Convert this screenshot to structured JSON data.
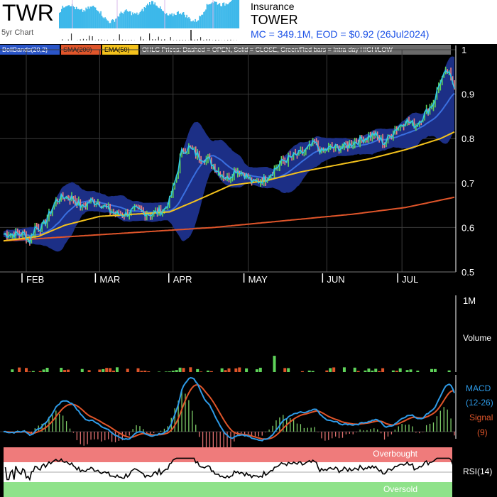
{
  "header": {
    "ticker": "TWR",
    "five_yr_label": "5yr Chart",
    "sector": "Insurance",
    "company": "TOWER",
    "market_info": "MC = 349.1M, EOD = $0.92 (26Jul2024)"
  },
  "legend": {
    "boll": "BollBands(20,2)",
    "sma": "SMA(200)",
    "ema": "EMA(50)",
    "note": "OHLC Prices: Dashed = OPEN, Solid = CLOSE, Green/Red bars = Intra-day HIGH/LOW"
  },
  "colors": {
    "boll_fill": "#1c2f86",
    "boll_mid": "#3a6fe0",
    "sma": "#e0552a",
    "ema": "#f4c21c",
    "price": "#2ec7e8",
    "up": "#5fd35a",
    "down": "#ef8080",
    "macd": "#2e9be8",
    "signal": "#e0552a",
    "overbought": "#ef7b7b",
    "oversold": "#8fe28a",
    "header_link": "#1a50e6"
  },
  "labels": {
    "volume": "Volume",
    "volume_max": "1M",
    "macd": "MACD",
    "macd_params": "(12-26)",
    "signal": "Signal",
    "signal_params": "(9)",
    "rsi": "RSI(14)",
    "overbought": "Overbought",
    "oversold": "Oversold"
  },
  "chart_data": {
    "type": "line",
    "title": "TWR",
    "y_ticks": [
      "1",
      "0.9",
      "0.8",
      "0.7",
      "0.6",
      "0.5"
    ],
    "ylim": [
      0.5,
      1.0
    ],
    "months": [
      "FEB",
      "MAR",
      "APR",
      "MAY",
      "JUN",
      "JUL"
    ],
    "close_anchors": [
      [
        0,
        0.585
      ],
      [
        12,
        0.585
      ],
      [
        15,
        0.57
      ],
      [
        18,
        0.6
      ],
      [
        22,
        0.6
      ],
      [
        25,
        0.62
      ],
      [
        30,
        0.66
      ],
      [
        35,
        0.67
      ],
      [
        40,
        0.665
      ],
      [
        45,
        0.645
      ],
      [
        50,
        0.66
      ],
      [
        55,
        0.655
      ],
      [
        60,
        0.64
      ],
      [
        65,
        0.63
      ],
      [
        70,
        0.63
      ],
      [
        75,
        0.64
      ],
      [
        85,
        0.63
      ],
      [
        92,
        0.64
      ],
      [
        95,
        0.66
      ],
      [
        98,
        0.7
      ],
      [
        102,
        0.77
      ],
      [
        106,
        0.78
      ],
      [
        112,
        0.76
      ],
      [
        118,
        0.75
      ],
      [
        122,
        0.73
      ],
      [
        128,
        0.71
      ],
      [
        133,
        0.73
      ],
      [
        138,
        0.72
      ],
      [
        143,
        0.7
      ],
      [
        150,
        0.71
      ],
      [
        155,
        0.73
      ],
      [
        160,
        0.75
      ],
      [
        166,
        0.76
      ],
      [
        172,
        0.77
      ],
      [
        178,
        0.79
      ],
      [
        182,
        0.77
      ],
      [
        188,
        0.78
      ],
      [
        194,
        0.78
      ],
      [
        200,
        0.79
      ],
      [
        206,
        0.8
      ],
      [
        212,
        0.81
      ],
      [
        218,
        0.79
      ],
      [
        224,
        0.82
      ],
      [
        230,
        0.84
      ],
      [
        236,
        0.83
      ],
      [
        242,
        0.86
      ],
      [
        246,
        0.88
      ],
      [
        250,
        0.93
      ],
      [
        254,
        0.95
      ],
      [
        258,
        0.92
      ]
    ],
    "ema50_anchors": [
      [
        0,
        0.57
      ],
      [
        20,
        0.58
      ],
      [
        35,
        0.605
      ],
      [
        55,
        0.625
      ],
      [
        75,
        0.63
      ],
      [
        95,
        0.635
      ],
      [
        110,
        0.66
      ],
      [
        130,
        0.695
      ],
      [
        150,
        0.705
      ],
      [
        170,
        0.725
      ],
      [
        190,
        0.74
      ],
      [
        210,
        0.755
      ],
      [
        230,
        0.775
      ],
      [
        250,
        0.8
      ],
      [
        258,
        0.815
      ]
    ],
    "sma200_anchors": [
      [
        0,
        0.57
      ],
      [
        40,
        0.58
      ],
      [
        80,
        0.59
      ],
      [
        120,
        0.6
      ],
      [
        160,
        0.615
      ],
      [
        200,
        0.63
      ],
      [
        230,
        0.645
      ],
      [
        258,
        0.668
      ]
    ],
    "volume": {
      "ylim": [
        0,
        1000000
      ],
      "spikes": [
        [
          28,
          0.35
        ],
        [
          100,
          0.33
        ],
        [
          150,
          1.0
        ],
        [
          155,
          0.22
        ],
        [
          170,
          0.14
        ]
      ]
    },
    "rsi": {
      "ylim": [
        0,
        100
      ],
      "overbought": 70,
      "oversold": 30
    }
  }
}
